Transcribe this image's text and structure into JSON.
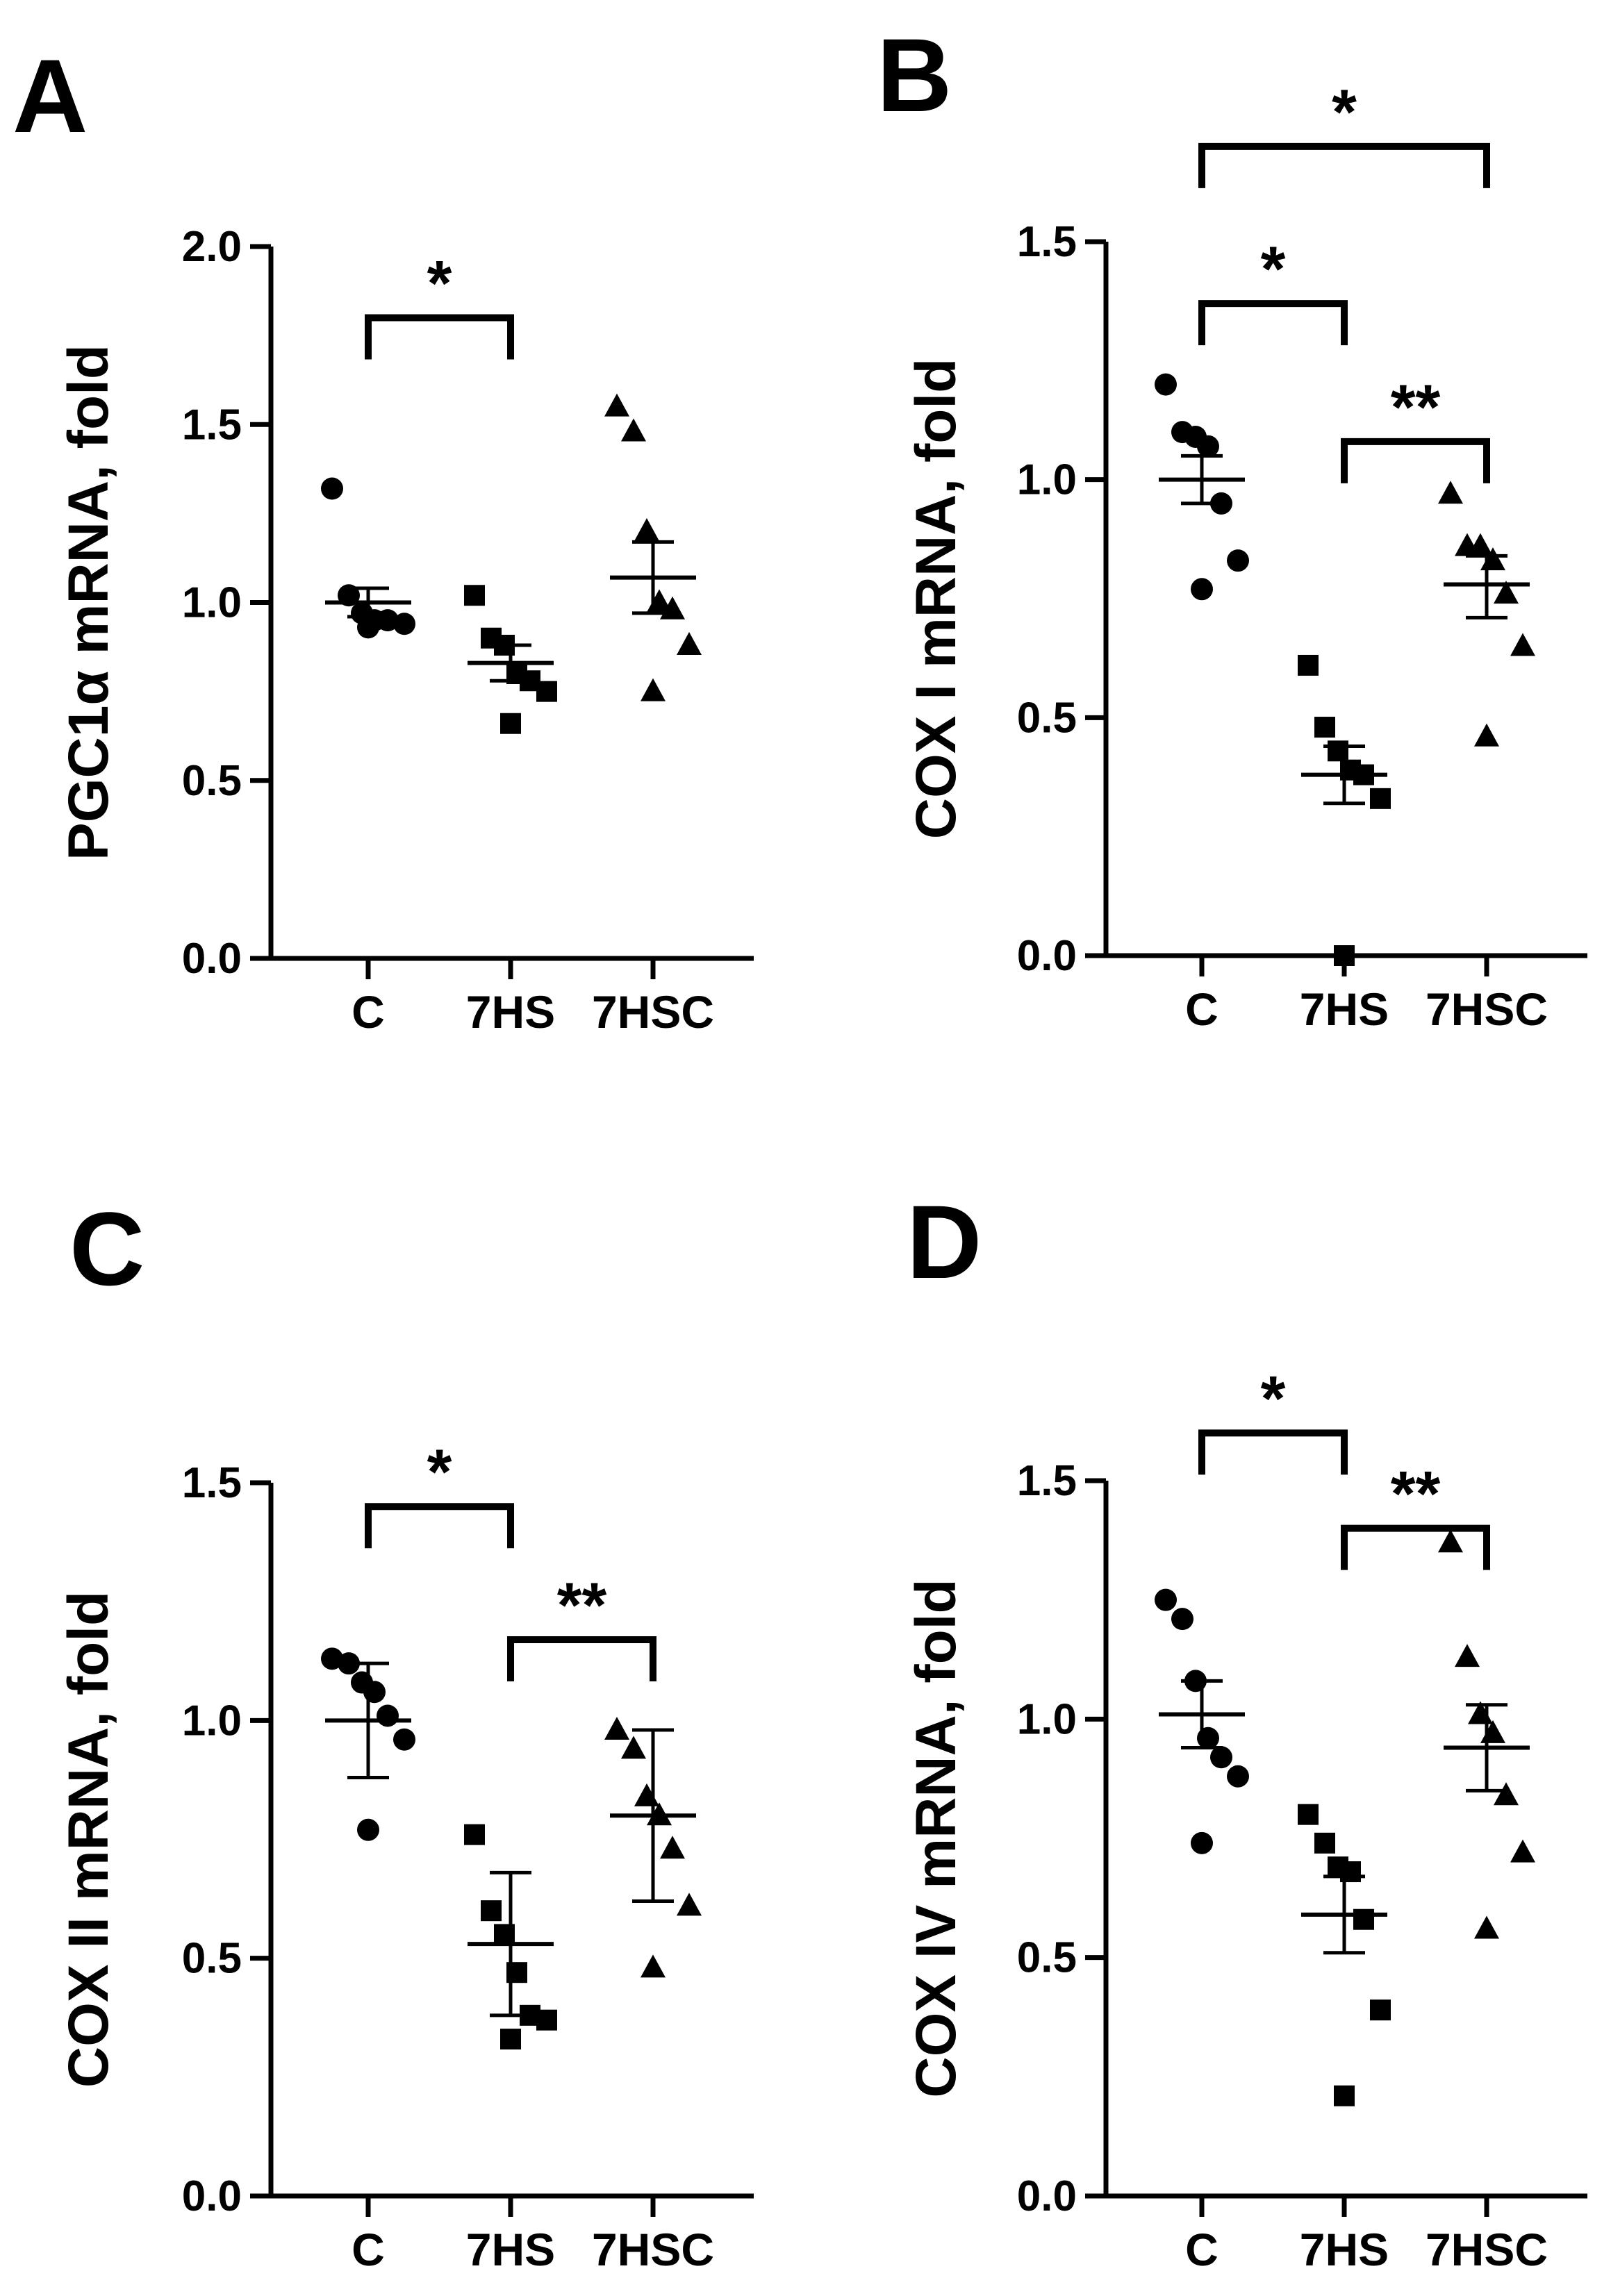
{
  "figure": {
    "background": "#ffffff",
    "ink": "#000000"
  },
  "chart_data": [
    {
      "panel": "A",
      "type": "scatter",
      "title": "",
      "ylabel": "PGC1α mRNA, fold",
      "xlabel": "",
      "categories": [
        "C",
        "7HS",
        "7HSC"
      ],
      "ylim": [
        0,
        2.0
      ],
      "yticks": [
        0.0,
        0.5,
        1.0,
        1.5,
        2.0
      ],
      "ytick_labels": [
        "0.0",
        "0.5",
        "1.0",
        "1.5",
        "2.0"
      ],
      "series": [
        {
          "name": "C",
          "marker": "circle",
          "values": [
            1.32,
            1.02,
            0.97,
            0.95,
            0.95,
            0.94,
            0.93
          ],
          "center": 1.0,
          "err_low": 0.96,
          "err_high": 1.04
        },
        {
          "name": "7HS",
          "marker": "square",
          "values": [
            1.02,
            0.9,
            0.88,
            0.8,
            0.78,
            0.75,
            0.66
          ],
          "center": 0.83,
          "err_low": 0.78,
          "err_high": 0.88
        },
        {
          "name": "7HSC",
          "marker": "triangle",
          "values": [
            1.55,
            1.48,
            1.2,
            1.0,
            0.98,
            0.88,
            0.75
          ],
          "center": 1.07,
          "err_low": 0.97,
          "err_high": 1.17
        }
      ],
      "significance": [
        {
          "from": 0,
          "to": 1,
          "y": 1.8,
          "label": "*"
        }
      ]
    },
    {
      "panel": "B",
      "type": "scatter",
      "title": "",
      "ylabel": "COX I mRNA, fold",
      "xlabel": "",
      "categories": [
        "C",
        "7HS",
        "7HSC"
      ],
      "ylim": [
        0,
        1.5
      ],
      "yticks": [
        0.0,
        0.5,
        1.0,
        1.5
      ],
      "ytick_labels": [
        "0.0",
        "0.5",
        "1.0",
        "1.5"
      ],
      "series": [
        {
          "name": "C",
          "marker": "circle",
          "values": [
            1.2,
            1.1,
            1.09,
            1.07,
            0.95,
            0.83,
            0.77
          ],
          "center": 1.0,
          "err_low": 0.95,
          "err_high": 1.05
        },
        {
          "name": "7HS",
          "marker": "square",
          "values": [
            0.61,
            0.48,
            0.43,
            0.39,
            0.38,
            0.33,
            0.0
          ],
          "center": 0.38,
          "err_low": 0.32,
          "err_high": 0.44
        },
        {
          "name": "7HSC",
          "marker": "triangle",
          "values": [
            0.97,
            0.86,
            0.86,
            0.83,
            0.76,
            0.65,
            0.46
          ],
          "center": 0.78,
          "err_low": 0.71,
          "err_high": 0.84
        }
      ],
      "significance": [
        {
          "from": 0,
          "to": 2,
          "y": 1.7,
          "label": "*"
        },
        {
          "from": 0,
          "to": 1,
          "y": 1.37,
          "label": "*"
        },
        {
          "from": 1,
          "to": 2,
          "y": 1.08,
          "label": "**"
        }
      ]
    },
    {
      "panel": "C",
      "type": "scatter",
      "title": "",
      "ylabel": "COX II mRNA, fold",
      "xlabel": "",
      "categories": [
        "C",
        "7HS",
        "7HSC"
      ],
      "ylim": [
        0,
        1.5
      ],
      "yticks": [
        0.0,
        0.5,
        1.0,
        1.5
      ],
      "ytick_labels": [
        "0.0",
        "0.5",
        "1.0",
        "1.5"
      ],
      "series": [
        {
          "name": "C",
          "marker": "circle",
          "values": [
            1.13,
            1.12,
            1.08,
            1.06,
            1.01,
            0.96,
            0.77
          ],
          "center": 1.0,
          "err_low": 0.88,
          "err_high": 1.12
        },
        {
          "name": "7HS",
          "marker": "square",
          "values": [
            0.76,
            0.6,
            0.55,
            0.47,
            0.38,
            0.37,
            0.33
          ],
          "center": 0.53,
          "err_low": 0.38,
          "err_high": 0.68
        },
        {
          "name": "7HSC",
          "marker": "triangle",
          "values": [
            0.98,
            0.94,
            0.84,
            0.8,
            0.73,
            0.61,
            0.48
          ],
          "center": 0.8,
          "err_low": 0.62,
          "err_high": 0.98
        }
      ],
      "significance": [
        {
          "from": 0,
          "to": 1,
          "y": 1.45,
          "label": "*"
        },
        {
          "from": 1,
          "to": 2,
          "y": 1.17,
          "label": "**"
        }
      ]
    },
    {
      "panel": "D",
      "type": "scatter",
      "title": "",
      "ylabel": "COX IV mRNA, fold",
      "xlabel": "",
      "categories": [
        "C",
        "7HS",
        "7HSC"
      ],
      "ylim": [
        0,
        1.5
      ],
      "yticks": [
        0.0,
        0.5,
        1.0,
        1.5
      ],
      "ytick_labels": [
        "0.0",
        "0.5",
        "1.0",
        "1.5"
      ],
      "series": [
        {
          "name": "C",
          "marker": "circle",
          "values": [
            1.25,
            1.21,
            1.08,
            0.96,
            0.92,
            0.88,
            0.74
          ],
          "center": 1.01,
          "err_low": 0.94,
          "err_high": 1.08
        },
        {
          "name": "7HS",
          "marker": "square",
          "values": [
            0.8,
            0.74,
            0.69,
            0.68,
            0.58,
            0.39,
            0.21
          ],
          "center": 0.59,
          "err_low": 0.51,
          "err_high": 0.67
        },
        {
          "name": "7HSC",
          "marker": "triangle",
          "values": [
            1.37,
            1.13,
            1.01,
            0.97,
            0.84,
            0.72,
            0.56
          ],
          "center": 0.94,
          "err_low": 0.85,
          "err_high": 1.03
        }
      ],
      "significance": [
        {
          "from": 0,
          "to": 1,
          "y": 1.6,
          "label": "*"
        },
        {
          "from": 1,
          "to": 2,
          "y": 1.4,
          "label": "**"
        }
      ]
    }
  ]
}
